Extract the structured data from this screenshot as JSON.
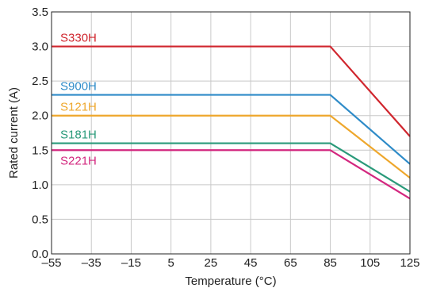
{
  "chart_data": {
    "type": "line",
    "title": "",
    "xlabel": "Temperature (°C)",
    "ylabel": "Rated current (A)",
    "xlim": [
      -55,
      125
    ],
    "ylim": [
      0.0,
      3.5
    ],
    "xticks": [
      -55,
      -35,
      -15,
      5,
      25,
      45,
      65,
      85,
      105,
      125
    ],
    "xtick_labels": [
      "–55",
      "–35",
      "–15",
      "5",
      "25",
      "45",
      "65",
      "85",
      "105",
      "125"
    ],
    "yticks": [
      0.0,
      0.5,
      1.0,
      1.5,
      2.0,
      2.5,
      3.0,
      3.5
    ],
    "ytick_labels": [
      "0.0",
      "0.5",
      "1.0",
      "1.5",
      "2.0",
      "2.5",
      "3.0",
      "3.5"
    ],
    "grid": true,
    "legend": "inline labels",
    "series": [
      {
        "name": "S330H",
        "color": "#d0262e",
        "x": [
          -55,
          85,
          125
        ],
        "y": [
          3.0,
          3.0,
          1.7
        ]
      },
      {
        "name": "S900H",
        "color": "#2e8bc8",
        "x": [
          -55,
          85,
          125
        ],
        "y": [
          2.3,
          2.3,
          1.3
        ]
      },
      {
        "name": "S121H",
        "color": "#eea72c",
        "x": [
          -55,
          85,
          125
        ],
        "y": [
          2.0,
          2.0,
          1.1
        ]
      },
      {
        "name": "S181H",
        "color": "#2a9a7a",
        "x": [
          -55,
          85,
          125
        ],
        "y": [
          1.6,
          1.6,
          0.9
        ]
      },
      {
        "name": "S221H",
        "color": "#d3277f",
        "x": [
          -55,
          85,
          125
        ],
        "y": [
          1.5,
          1.5,
          0.8
        ]
      }
    ]
  }
}
